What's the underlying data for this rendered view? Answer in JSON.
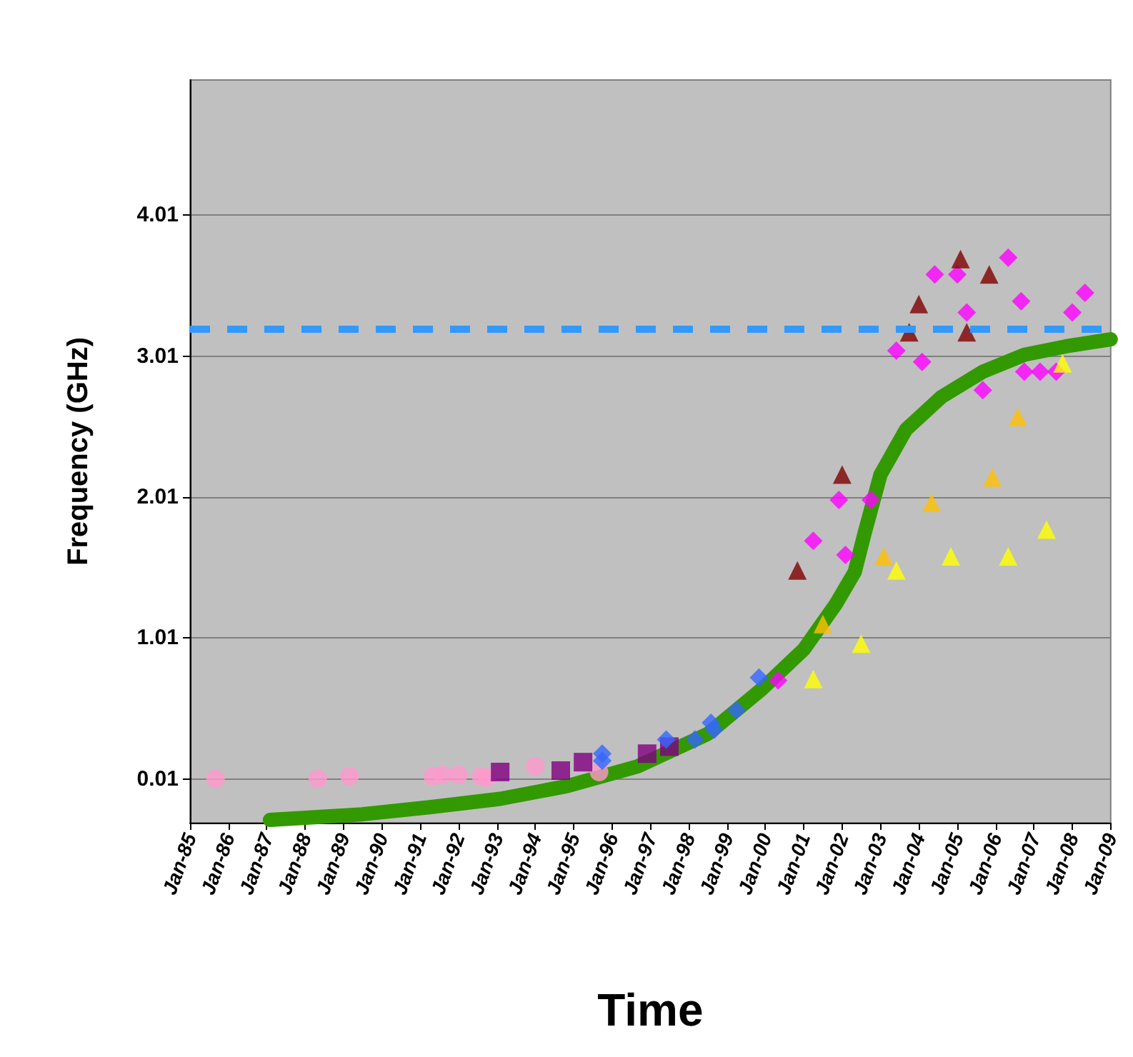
{
  "chart_data": {
    "type": "scatter",
    "xlabel": "Time",
    "ylabel": "Frequency (GHz)",
    "xlim": [
      "1985-01",
      "2009-01"
    ],
    "xticks": [
      {
        "value": "1985-01",
        "label": "Jan-85"
      },
      {
        "value": "1986-01",
        "label": "Jan-86"
      },
      {
        "value": "1987-01",
        "label": "Jan-87"
      },
      {
        "value": "1988-01",
        "label": "Jan-88"
      },
      {
        "value": "1989-01",
        "label": "Jan-89"
      },
      {
        "value": "1990-01",
        "label": "Jan-90"
      },
      {
        "value": "1991-01",
        "label": "Jan-91"
      },
      {
        "value": "1992-01",
        "label": "Jan-92"
      },
      {
        "value": "1993-01",
        "label": "Jan-93"
      },
      {
        "value": "1994-01",
        "label": "Jan-94"
      },
      {
        "value": "1995-01",
        "label": "Jan-95"
      },
      {
        "value": "1996-01",
        "label": "Jan-96"
      },
      {
        "value": "1997-01",
        "label": "Jan-97"
      },
      {
        "value": "1998-01",
        "label": "Jan-98"
      },
      {
        "value": "1999-01",
        "label": "Jan-99"
      },
      {
        "value": "2000-01",
        "label": "Jan-00"
      },
      {
        "value": "2001-01",
        "label": "Jan-01"
      },
      {
        "value": "2002-01",
        "label": "Jan-02"
      },
      {
        "value": "2003-01",
        "label": "Jan-03"
      },
      {
        "value": "2004-01",
        "label": "Jan-04"
      },
      {
        "value": "2005-01",
        "label": "Jan-05"
      },
      {
        "value": "2006-01",
        "label": "Jan-06"
      },
      {
        "value": "2007-01",
        "label": "Jan-07"
      },
      {
        "value": "2008-01",
        "label": "Jan-08"
      },
      {
        "value": "2009-01",
        "label": "Jan-09"
      }
    ],
    "ylim": [
      -0.3,
      4.97
    ],
    "yticks": [
      0.01,
      1.01,
      2.01,
      3.01,
      4.01
    ],
    "grid": "y",
    "series": [
      {
        "marker": "circle",
        "color": "#ff99cc",
        "x": [
          "1985-09",
          "1988-05",
          "1989-03",
          "1991-05",
          "1991-08",
          "1992-01",
          "1992-08",
          "1992-10",
          "1994-01",
          "1995-09"
        ],
        "values": [
          0.01,
          0.01,
          0.03,
          0.03,
          0.04,
          0.04,
          0.03,
          0.02,
          0.1,
          0.06
        ]
      },
      {
        "marker": "square",
        "color": "#800080",
        "x": [
          "1993-02",
          "1994-09",
          "1995-04",
          "1996-12",
          "1997-07"
        ],
        "values": [
          0.06,
          0.07,
          0.13,
          0.19,
          0.24
        ]
      },
      {
        "marker": "diamond",
        "color": "#3366ff",
        "x": [
          "1995-10",
          "1995-10",
          "1997-06",
          "1998-03",
          "1998-08",
          "1998-09",
          "1999-04",
          "1999-11"
        ],
        "values": [
          0.19,
          0.14,
          0.29,
          0.29,
          0.41,
          0.36,
          0.5,
          0.73
        ]
      },
      {
        "marker": "diamond",
        "color": "#ff00ff",
        "x": [
          "2000-05",
          "2001-04",
          "2001-12",
          "2002-02",
          "2002-10",
          "2003-06",
          "2004-02",
          "2004-06",
          "2005-01",
          "2005-04",
          "2006-05",
          "2005-09",
          "2006-09",
          "2006-10",
          "2007-03",
          "2007-08",
          "2008-01",
          "2008-05"
        ],
        "values": [
          0.71,
          1.7,
          1.99,
          1.6,
          1.99,
          3.05,
          2.97,
          3.59,
          3.59,
          3.32,
          3.71,
          2.77,
          3.4,
          2.9,
          2.9,
          2.9,
          3.32,
          3.46
        ]
      },
      {
        "marker": "triangle",
        "color": "#800000",
        "x": [
          "2000-11",
          "2002-01",
          "2004-01",
          "2003-10",
          "2005-02",
          "2005-11",
          "2005-04"
        ],
        "values": [
          1.49,
          2.17,
          3.38,
          3.18,
          3.7,
          3.59,
          3.18
        ]
      },
      {
        "marker": "triangle",
        "color": "#ffc000",
        "x": [
          "2001-07",
          "2003-02",
          "2004-05",
          "2005-12",
          "2006-08"
        ],
        "values": [
          1.11,
          1.59,
          1.97,
          2.15,
          2.58
        ]
      },
      {
        "marker": "triangle",
        "color": "#ffff00",
        "x": [
          "2001-04",
          "2002-07",
          "2003-06",
          "2004-11",
          "2006-05",
          "2007-05",
          "2007-10"
        ],
        "values": [
          0.72,
          0.97,
          1.49,
          1.59,
          1.59,
          1.78,
          2.96
        ]
      },
      {
        "type": "line",
        "marker": "none",
        "color": "#339900",
        "x": [
          "1987-02",
          "1989-07",
          "1991-04",
          "1993-02",
          "1994-11",
          "1996-09",
          "1998-07",
          "1999-12",
          "2001-01",
          "2001-11",
          "2002-05",
          "2002-08",
          "2003-01",
          "2003-09",
          "2004-08",
          "2005-09",
          "2006-10",
          "2007-11",
          "2009-01"
        ],
        "values": [
          -0.28,
          -0.24,
          -0.19,
          -0.13,
          -0.04,
          0.1,
          0.33,
          0.65,
          0.93,
          1.25,
          1.48,
          1.75,
          2.17,
          2.49,
          2.72,
          2.9,
          3.02,
          3.08,
          3.13
        ]
      }
    ],
    "ref_lines": [
      {
        "axis": "y",
        "value": 3.2,
        "color": "#3399ff",
        "line_style": "dashed"
      }
    ]
  }
}
